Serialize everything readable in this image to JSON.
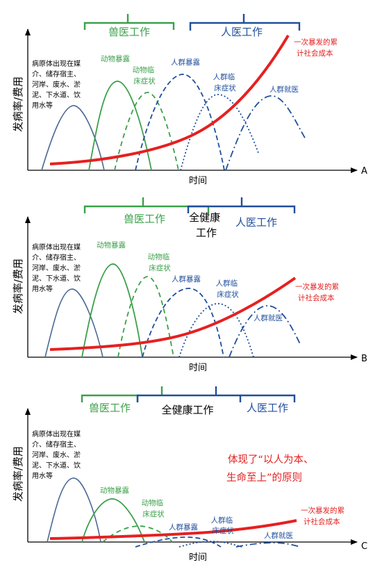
{
  "panels": [
    {
      "id": "A",
      "panel_label": "A",
      "ylabel": "发病率/费用",
      "xlabel": "时间",
      "brackets": {
        "vet": "兽医工作",
        "human": "人医工作",
        "one_health": ""
      },
      "source_note": [
        "病原体出现在媒",
        "介、储存宿主、",
        "河岸、废水、淤",
        "泥、下水道、饮",
        "用水等"
      ],
      "labels": {
        "animal_exposure": "动物暴露",
        "animal_clinical": [
          "动物临",
          "床症状"
        ],
        "human_exposure": "人群暴露",
        "human_clinical": [
          "人群临",
          "床症状"
        ],
        "human_medical": "人群就医",
        "outbreak_cost": [
          "一次暴发的累",
          "计社会成本"
        ]
      },
      "statement": []
    },
    {
      "id": "B",
      "panel_label": "B",
      "ylabel": "发病率/费用",
      "xlabel": "时间",
      "brackets": {
        "vet": "兽医工作",
        "human": "人医工作",
        "one_health": [
          "全健康",
          "工作"
        ]
      },
      "source_note": [
        "病原体出现在媒",
        "介、储存宿主、",
        "河岸、废水、淤",
        "泥、下水道、饮",
        "用水等"
      ],
      "labels": {
        "animal_exposure": "动物暴露",
        "animal_clinical": [
          "动物临",
          "床症状"
        ],
        "human_exposure": "人群暴露",
        "human_clinical": [
          "人群临",
          "床症状"
        ],
        "human_medical": "人群就医",
        "outbreak_cost": [
          "一次暴发的累",
          "计社会成本"
        ]
      },
      "statement": []
    },
    {
      "id": "C",
      "panel_label": "C",
      "ylabel": "发病率/费用",
      "xlabel": "时间",
      "brackets": {
        "vet": "兽医工作",
        "human": "人医工作",
        "one_health": "全健康工作"
      },
      "source_note": [
        "病原体出现在媒",
        "介、储存宿主、",
        "河岸、废水、淤",
        "泥、下水道、饮",
        "用水等"
      ],
      "labels": {
        "animal_exposure": "动物暴露",
        "animal_clinical": [
          "动物临",
          "床症状"
        ],
        "human_exposure": "人群暴露",
        "human_clinical": [
          "人群临",
          "床症状"
        ],
        "human_medical": "人群就医",
        "outbreak_cost": [
          "一次暴发的累",
          "计社会成本"
        ]
      },
      "statement": [
        "体现了“以人为本、",
        "生命至上”的原则"
      ]
    }
  ],
  "colors": {
    "vet_green": "#3aa04a",
    "human_blue": "#1f4e9c",
    "source_blue": "#4a6894",
    "cost_red": "#e62020",
    "axis": "#000000"
  }
}
